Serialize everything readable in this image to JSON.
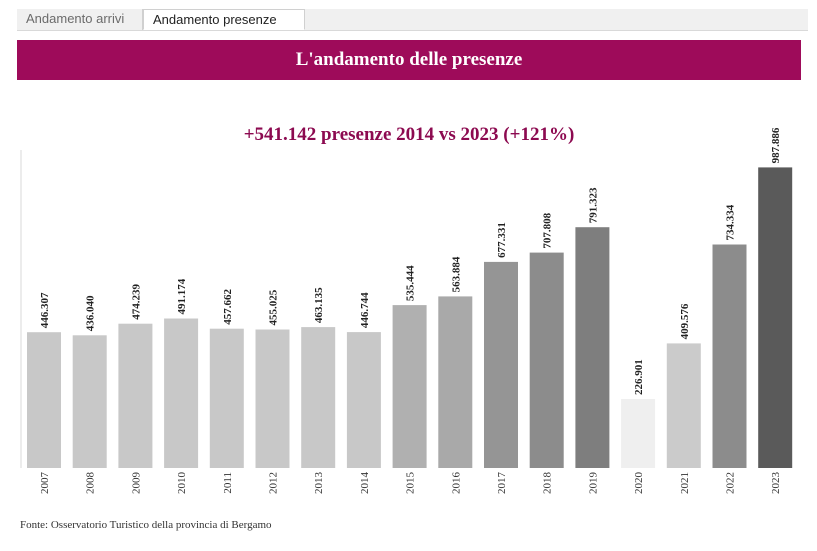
{
  "tabs": [
    {
      "label": "Andamento arrivi",
      "active": false
    },
    {
      "label": "Andamento presenze",
      "active": true
    }
  ],
  "header": {
    "title": "L'andamento delle presenze",
    "subtitle": "+541.142 presenze 2014 vs 2023 (+121%)"
  },
  "footer": {
    "source": "Fonte: Osservatorio Turistico della provincia di Bergamo"
  },
  "colors": {
    "banner_bg": "#9e0b5a",
    "subtitle_text": "#8c0a50"
  },
  "chart_data": {
    "type": "bar",
    "categories": [
      "2007",
      "2008",
      "2009",
      "2010",
      "2011",
      "2012",
      "2013",
      "2014",
      "2015",
      "2016",
      "2017",
      "2018",
      "2019",
      "2020",
      "2021",
      "2022",
      "2023"
    ],
    "values": [
      446307,
      436040,
      474239,
      491174,
      457662,
      455025,
      463135,
      446744,
      535444,
      563884,
      677331,
      707808,
      791323,
      226901,
      409576,
      734334,
      987886
    ],
    "value_labels": [
      "446.307",
      "436.040",
      "474.239",
      "491.174",
      "457.662",
      "455.025",
      "463.135",
      "446.744",
      "535.444",
      "563.884",
      "677.331",
      "707.808",
      "791.323",
      "226.901",
      "409.576",
      "734.334",
      "987.886"
    ],
    "bar_colors": [
      "#c8c8c8",
      "#c8c8c8",
      "#c8c8c8",
      "#c8c8c8",
      "#c8c8c8",
      "#c8c8c8",
      "#c8c8c8",
      "#c8c8c8",
      "#b0b0b0",
      "#a9a9a9",
      "#959595",
      "#8c8c8c",
      "#7e7e7e",
      "#efefef",
      "#cbcbcb",
      "#8c8c8c",
      "#5a5a5a"
    ],
    "ylim": [
      0,
      1045000
    ],
    "grid": false,
    "legend": "none"
  }
}
